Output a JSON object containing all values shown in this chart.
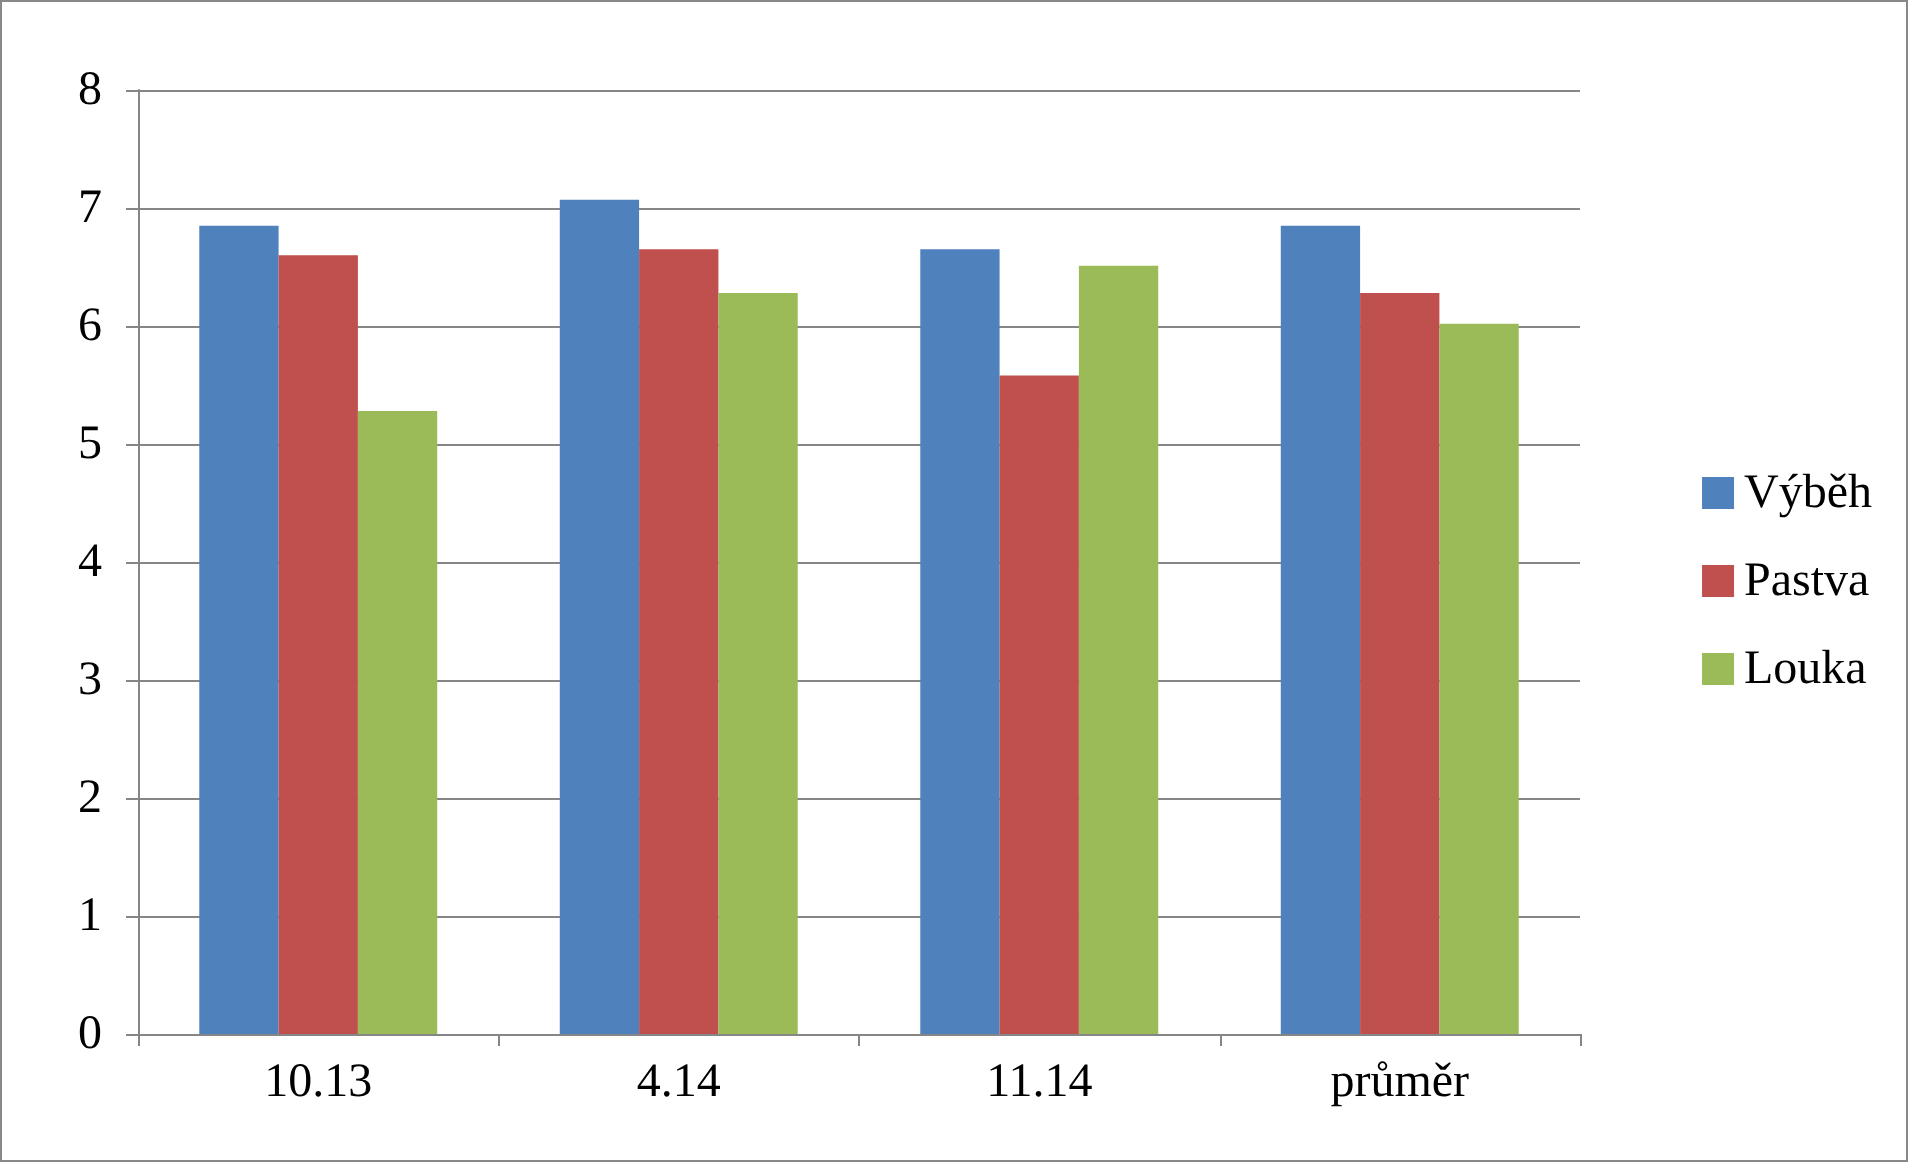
{
  "chart_data": {
    "type": "bar",
    "categories": [
      "10.13",
      "4.14",
      "11.14",
      "průměr"
    ],
    "series": [
      {
        "name": "Výběh",
        "color": "#4f81bd",
        "values": [
          6.85,
          7.07,
          6.65,
          6.85
        ]
      },
      {
        "name": "Pastva",
        "color": "#c0504d",
        "values": [
          6.6,
          6.65,
          5.58,
          6.28
        ]
      },
      {
        "name": "Louka",
        "color": "#9bbb59",
        "values": [
          5.28,
          6.28,
          6.51,
          6.02
        ]
      }
    ],
    "ylim": [
      0,
      8
    ],
    "yticks": [
      0,
      1,
      2,
      3,
      4,
      5,
      6,
      7,
      8
    ],
    "grid": "y",
    "legend": "right"
  }
}
